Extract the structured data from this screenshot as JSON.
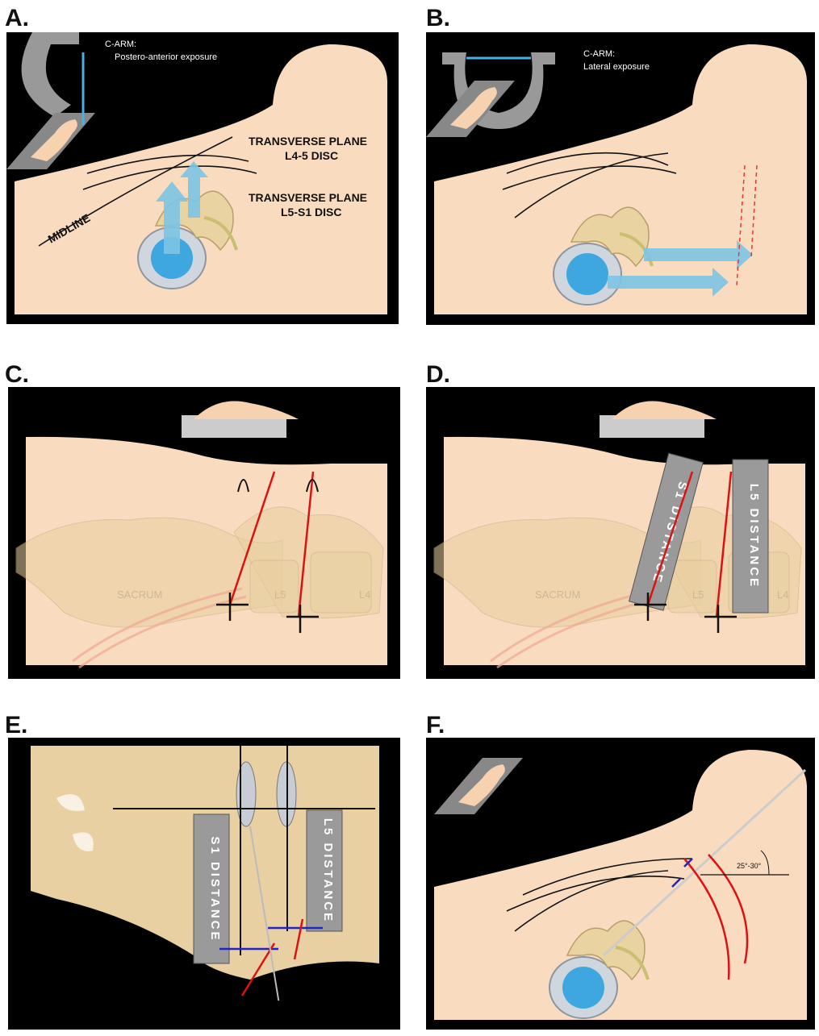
{
  "panels": [
    {
      "label": "A.",
      "texts": [
        "C-ARM:",
        "Postero-anterior exposure",
        "TRANSVERSE PLANE",
        "L4-5 DISC",
        "TRANSVERSE PLANE",
        "L5-S1 DISC",
        "MIDLINE"
      ]
    },
    {
      "label": "B.",
      "texts": [
        "C-ARM:",
        "Lateral exposure"
      ]
    },
    {
      "label": "C.",
      "texts": [
        "SACRUM",
        "L5",
        "L4"
      ]
    },
    {
      "label": "D.",
      "texts": [
        "SACRUM",
        "L5",
        "L4",
        "S1 DISTANCE",
        "L5 DISTANCE"
      ]
    },
    {
      "label": "E.",
      "texts": [
        "S1 DISTANCE",
        "L5 DISTANCE"
      ]
    },
    {
      "label": "F.",
      "texts": [
        "25°-30°"
      ]
    }
  ]
}
